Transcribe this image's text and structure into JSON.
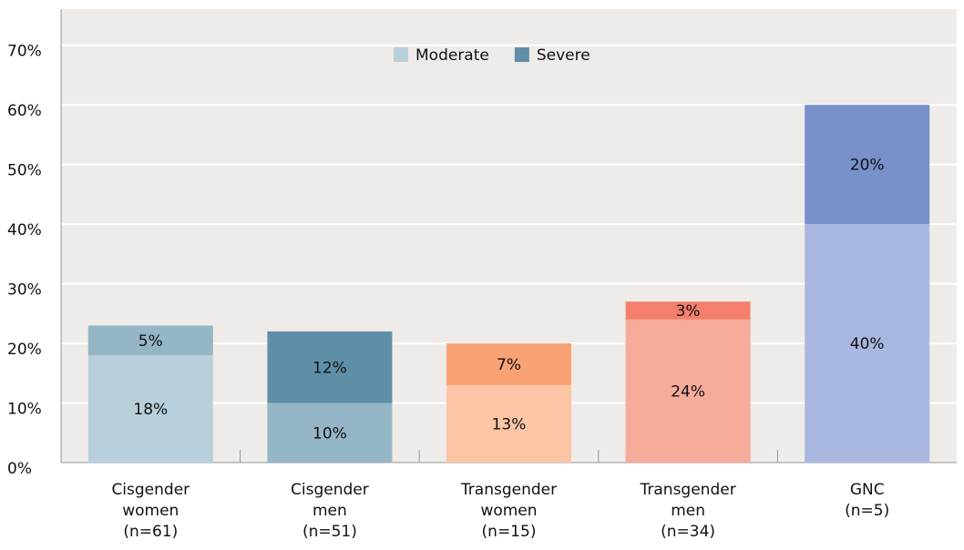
{
  "chart_data": {
    "type": "stacked_bar",
    "categories": [
      "Cisgender women (n=61)",
      "Cisgender men (n=51)",
      "Transgender women (n=15)",
      "Transgender men (n=34)",
      "GNC (n=5)"
    ],
    "series": [
      {
        "name": "Moderate",
        "color": "#b8d0db",
        "colors": [
          "#b8d0db",
          "#95b6c6",
          "#fcc5a5",
          "#f7ab9b",
          "#a8b8e0"
        ],
        "values": [
          18,
          10,
          13,
          24,
          40
        ],
        "value_labels": [
          "18%",
          "10%",
          "13%",
          "24%",
          "40%"
        ]
      },
      {
        "name": "Severe",
        "color": "#5e8fa6",
        "colors": [
          "#95b6c6",
          "#5e8fa6",
          "#f9a274",
          "#f47f6d",
          "#7891cb"
        ],
        "values": [
          5,
          12,
          7,
          3,
          20
        ],
        "value_labels": [
          "5%",
          "12%",
          "7%",
          "3%",
          "20%"
        ]
      }
    ],
    "ylim": [
      0,
      75
    ],
    "yticks": [
      {
        "value": 0,
        "label": "0%"
      },
      {
        "value": 10,
        "label": "10%"
      },
      {
        "value": 20,
        "label": "20%"
      },
      {
        "value": 30,
        "label": "30%"
      },
      {
        "value": 40,
        "label": "40%"
      },
      {
        "value": 50,
        "label": "50%"
      },
      {
        "value": 60,
        "label": "60%"
      },
      {
        "value": 70,
        "label": "70%"
      }
    ],
    "grid": true,
    "legend": "top"
  }
}
